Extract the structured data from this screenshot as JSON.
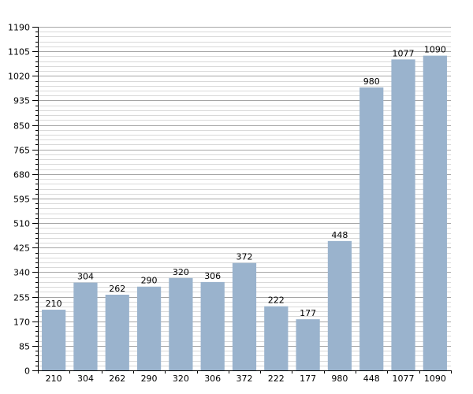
{
  "chart_data": {
    "type": "bar",
    "categories": [
      "210",
      "304",
      "262",
      "290",
      "320",
      "306",
      "372",
      "222",
      "177",
      "980",
      "448",
      "1077",
      "1090"
    ],
    "values": [
      210,
      304,
      262,
      290,
      320,
      306,
      372,
      222,
      177,
      448,
      980,
      1077,
      1090
    ],
    "data_labels": [
      "210",
      "304",
      "262",
      "290",
      "320",
      "306",
      "372",
      "222",
      "177",
      "448",
      "980",
      "1077",
      "1090"
    ],
    "title": "",
    "xlabel": "",
    "ylabel": "",
    "ylim": [
      0,
      1190
    ],
    "yticks": [
      0,
      85,
      170,
      255,
      340,
      425,
      510,
      595,
      680,
      765,
      850,
      935,
      1020,
      1105,
      1190
    ],
    "grid": true,
    "colors": {
      "bar": "#9ab3cd",
      "grid_minor": "#d9d9d9",
      "grid_major": "#a6a6a6",
      "axis": "#000000"
    }
  }
}
